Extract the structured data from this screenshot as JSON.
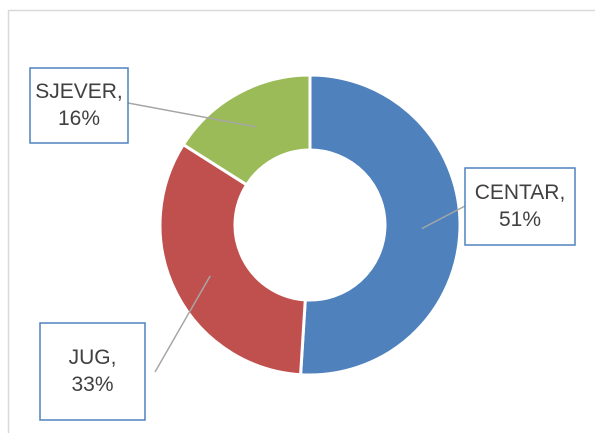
{
  "chart_data": {
    "type": "donut",
    "categories": [
      "CENTAR,",
      "JUG,",
      "SJEVER,"
    ],
    "values": [
      51,
      33,
      16
    ],
    "value_labels": [
      "51%",
      "33%",
      "16%"
    ],
    "colors": [
      "#4f81bd",
      "#c0504d",
      "#9bbb59"
    ]
  }
}
